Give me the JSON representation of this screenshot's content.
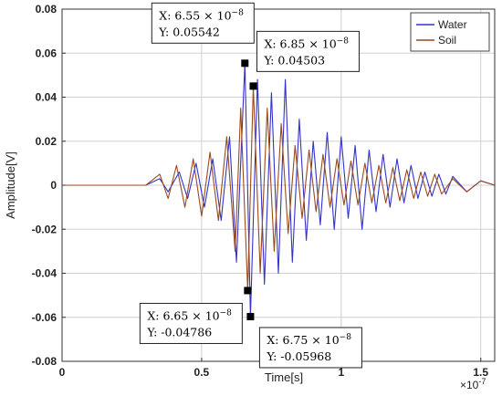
{
  "chart_data": {
    "type": "line",
    "xlabel": "Time[s]",
    "ylabel": "Amplitude[V]",
    "xlim": [
      0,
      1.55
    ],
    "ylim": [
      -0.08,
      0.08
    ],
    "x_exponent_label": "×10",
    "x_exponent_power": "-7",
    "x_ticks": [
      0,
      0.5,
      1,
      1.5
    ],
    "x_tick_labels": [
      "0",
      "0.5",
      "1",
      "1.5"
    ],
    "y_ticks": [
      -0.08,
      -0.06,
      -0.04,
      -0.02,
      0,
      0.02,
      0.04,
      0.06,
      0.08
    ],
    "y_tick_labels": [
      "-0.08",
      "-0.06",
      "-0.04",
      "-0.02",
      "0",
      "0.02",
      "0.04",
      "0.06",
      "0.08"
    ],
    "grid": true,
    "legend_position": "top-right",
    "series": [
      {
        "name": "Water",
        "color": "#3333cc",
        "points": [
          [
            0,
            0
          ],
          [
            0.2,
            0
          ],
          [
            0.3,
            0
          ],
          [
            0.35,
            0.003
          ],
          [
            0.38,
            -0.003
          ],
          [
            0.42,
            0.006
          ],
          [
            0.45,
            -0.006
          ],
          [
            0.48,
            0.01
          ],
          [
            0.51,
            -0.01
          ],
          [
            0.54,
            0.012
          ],
          [
            0.57,
            -0.016
          ],
          [
            0.6,
            0.022
          ],
          [
            0.625,
            -0.035
          ],
          [
            0.655,
            0.05542
          ],
          [
            0.675,
            -0.05968
          ],
          [
            0.7,
            0.048
          ],
          [
            0.725,
            -0.045
          ],
          [
            0.75,
            0.042
          ],
          [
            0.775,
            -0.04
          ],
          [
            0.8,
            0.048
          ],
          [
            0.825,
            -0.035
          ],
          [
            0.85,
            0.03
          ],
          [
            0.875,
            -0.025
          ],
          [
            0.9,
            0.02
          ],
          [
            0.925,
            -0.018
          ],
          [
            0.95,
            0.024
          ],
          [
            0.975,
            -0.02
          ],
          [
            1.0,
            0.022
          ],
          [
            1.025,
            -0.015
          ],
          [
            1.05,
            0.018
          ],
          [
            1.075,
            -0.02
          ],
          [
            1.1,
            0.016
          ],
          [
            1.125,
            -0.012
          ],
          [
            1.15,
            0.014
          ],
          [
            1.175,
            -0.01
          ],
          [
            1.2,
            0.012
          ],
          [
            1.225,
            -0.008
          ],
          [
            1.25,
            0.009
          ],
          [
            1.275,
            -0.006
          ],
          [
            1.3,
            0.006
          ],
          [
            1.325,
            -0.005
          ],
          [
            1.35,
            0.005
          ],
          [
            1.375,
            -0.004
          ],
          [
            1.4,
            0.004
          ],
          [
            1.45,
            -0.003
          ],
          [
            1.5,
            0.002
          ],
          [
            1.55,
            0
          ]
        ]
      },
      {
        "name": "Soil",
        "color": "#9a4a1c",
        "points": [
          [
            0,
            0
          ],
          [
            0.2,
            0
          ],
          [
            0.3,
            0
          ],
          [
            0.35,
            0.005
          ],
          [
            0.38,
            -0.006
          ],
          [
            0.41,
            0.009
          ],
          [
            0.44,
            -0.01
          ],
          [
            0.47,
            0.012
          ],
          [
            0.5,
            -0.014
          ],
          [
            0.53,
            0.015
          ],
          [
            0.56,
            -0.016
          ],
          [
            0.59,
            0.022
          ],
          [
            0.62,
            -0.03
          ],
          [
            0.64,
            0.035
          ],
          [
            0.665,
            -0.04786
          ],
          [
            0.685,
            0.04503
          ],
          [
            0.71,
            -0.04
          ],
          [
            0.735,
            0.035
          ],
          [
            0.76,
            -0.03
          ],
          [
            0.785,
            0.028
          ],
          [
            0.81,
            -0.022
          ],
          [
            0.835,
            0.018
          ],
          [
            0.86,
            -0.015
          ],
          [
            0.885,
            0.016
          ],
          [
            0.91,
            -0.012
          ],
          [
            0.935,
            0.014
          ],
          [
            0.96,
            -0.01
          ],
          [
            0.985,
            0.012
          ],
          [
            1.01,
            -0.009
          ],
          [
            1.035,
            0.011
          ],
          [
            1.06,
            -0.009
          ],
          [
            1.085,
            0.01
          ],
          [
            1.11,
            -0.008
          ],
          [
            1.135,
            0.009
          ],
          [
            1.16,
            -0.008
          ],
          [
            1.185,
            0.008
          ],
          [
            1.21,
            -0.007
          ],
          [
            1.235,
            0.007
          ],
          [
            1.26,
            -0.006
          ],
          [
            1.285,
            0.006
          ],
          [
            1.31,
            -0.005
          ],
          [
            1.335,
            0.005
          ],
          [
            1.36,
            -0.004
          ],
          [
            1.4,
            0.003
          ],
          [
            1.45,
            -0.003
          ],
          [
            1.5,
            0.002
          ],
          [
            1.55,
            0
          ]
        ]
      }
    ],
    "annotations": [
      {
        "x": 0.655,
        "y": 0.05542,
        "x_label_prefix": "X: 6.55 × 10",
        "x_label_exp": "−8",
        "y_label": "Y: 0.05542",
        "box_anchor": "up-left"
      },
      {
        "x": 0.685,
        "y": 0.04503,
        "x_label_prefix": "X: 6.85 × 10",
        "x_label_exp": "−8",
        "y_label": "Y: 0.04503",
        "box_anchor": "up-right"
      },
      {
        "x": 0.665,
        "y": -0.04786,
        "x_label_prefix": "X: 6.65 × 10",
        "x_label_exp": "−8",
        "y_label": "Y: -0.04786",
        "box_anchor": "down-left"
      },
      {
        "x": 0.675,
        "y": -0.05968,
        "x_label_prefix": "X: 6.75 × 10",
        "x_label_exp": "−8",
        "y_label": "Y: -0.05968",
        "box_anchor": "down-right"
      }
    ]
  }
}
